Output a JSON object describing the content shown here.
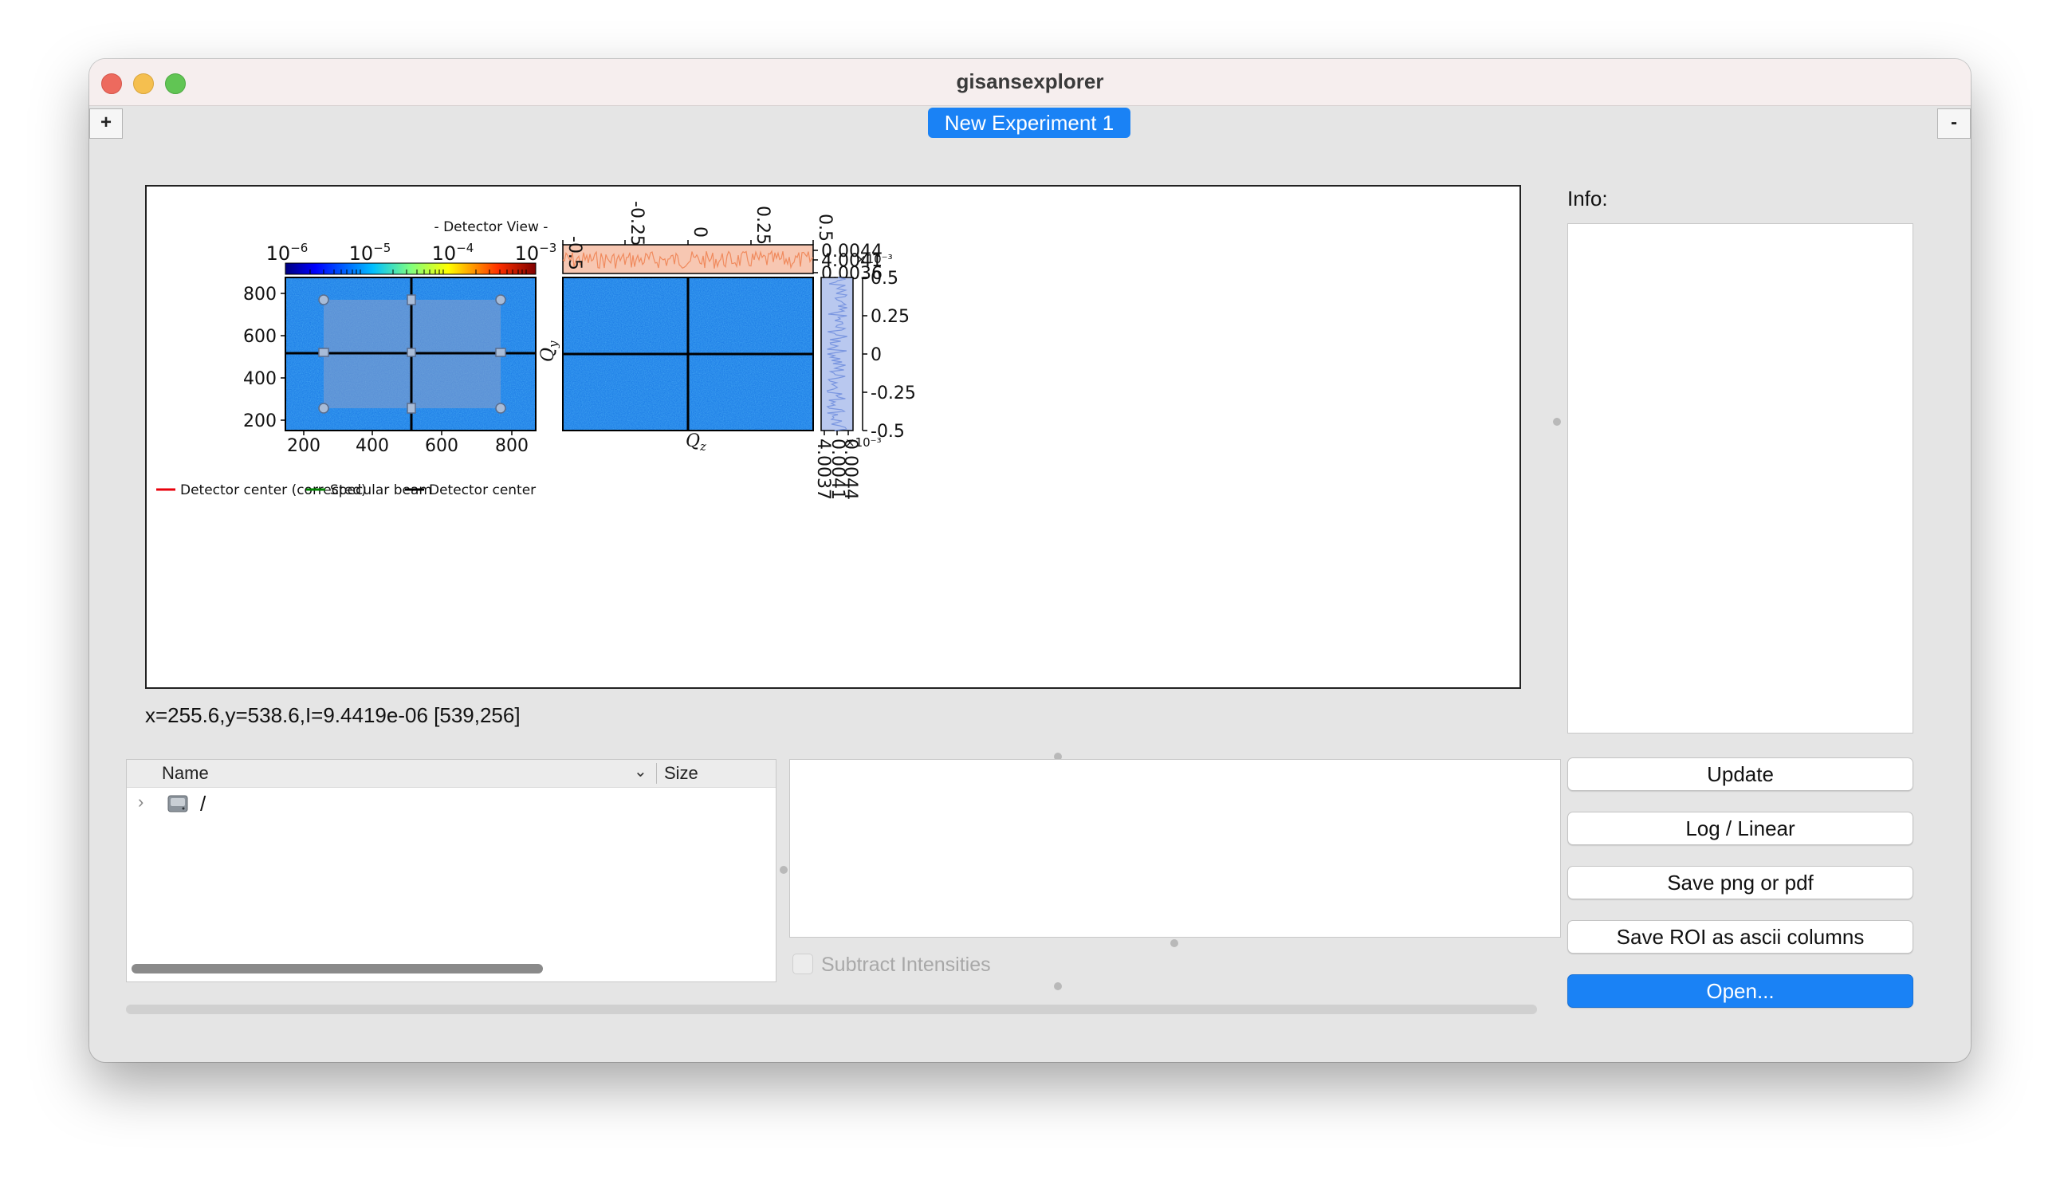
{
  "window": {
    "title": "gisansexplorer"
  },
  "tabs": {
    "add_label": "+",
    "remove_label": "-",
    "items": [
      {
        "label": "New Experiment 1"
      }
    ]
  },
  "figure": {
    "detector_title": "- Detector View -",
    "colorbar_ticks": [
      {
        "base": "10",
        "exp": "−6"
      },
      {
        "base": "10",
        "exp": "−5"
      },
      {
        "base": "10",
        "exp": "−4"
      },
      {
        "base": "10",
        "exp": "−3"
      }
    ],
    "detector_y_ticks": [
      "800",
      "600",
      "400",
      "200"
    ],
    "detector_x_ticks": [
      "200",
      "400",
      "600",
      "800"
    ],
    "legend": [
      "Detector center (corrected)",
      "Specular beam",
      "Detector center"
    ],
    "legend_colors": [
      "#e8000b",
      "#008000",
      "#000000"
    ],
    "q_top_ticks": [
      "-0.5",
      "-0.25",
      "0",
      "0.25",
      "0.5"
    ],
    "q_right_ticks": [
      "0.5",
      "0.25",
      "0",
      "-0.25",
      "-0.5"
    ],
    "qz_label": "Q",
    "qz_sub": "z",
    "qy_label": "Q",
    "qy_sub": "y",
    "top_profile_ticks": [
      "0.0044",
      "4.0041",
      "0.0036"
    ],
    "top_profile_scale": "×10⁻³",
    "side_profile_ticks": [
      "4.0037",
      "0.0041",
      "0.0044"
    ],
    "side_profile_scale": "×10⁻³",
    "profile_color": "#f08a5d",
    "side_profile_color": "#7a96e0"
  },
  "status": {
    "coords": "x=255.6,y=538.6,I=9.4419e-06   [539,256]"
  },
  "info": {
    "label": "Info:"
  },
  "tree": {
    "columns": {
      "name": "Name",
      "size": "Size"
    },
    "rows": [
      {
        "label": "/"
      }
    ]
  },
  "subtract": {
    "label": "Subtract Intensities"
  },
  "buttons": {
    "update": "Update",
    "log_linear": "Log / Linear",
    "save_png": "Save png or pdf",
    "save_roi": "Save ROI as ascii columns",
    "open": "Open..."
  }
}
